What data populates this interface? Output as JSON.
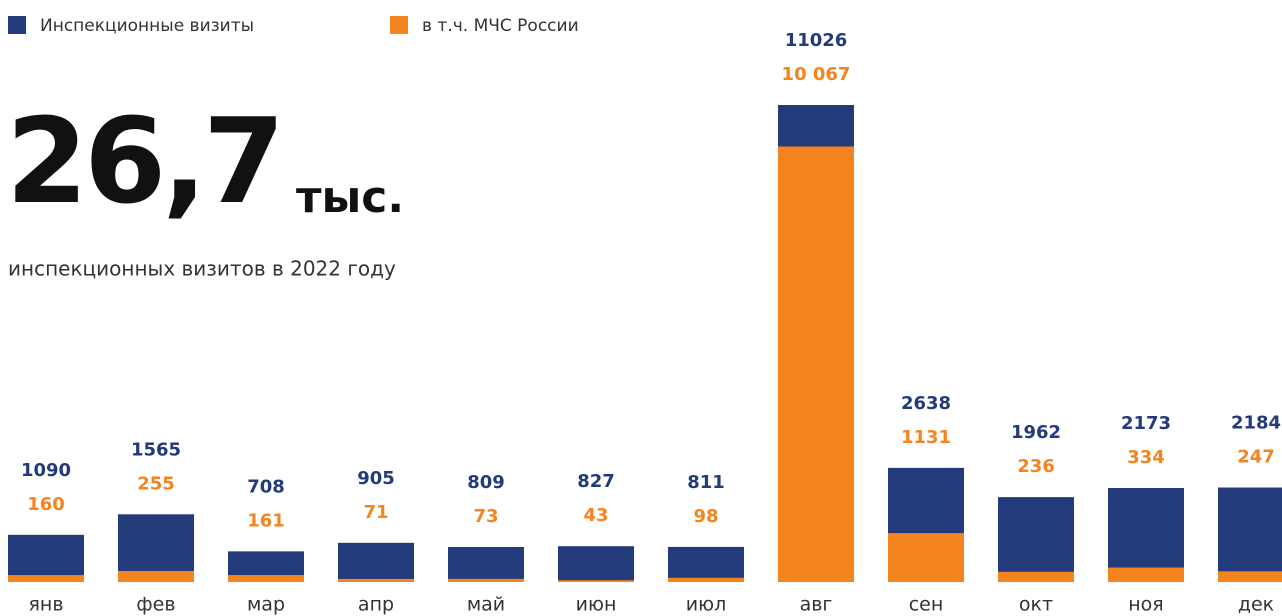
{
  "chart_data": {
    "type": "bar",
    "headline": "26,7",
    "headline_unit": "тыс.",
    "subtitle": "инспекционных визитов в 2022 году",
    "categories": [
      "янв",
      "фев",
      "мар",
      "апр",
      "май",
      "июн",
      "июл",
      "авг",
      "сен",
      "окт",
      "ноя",
      "дек"
    ],
    "series": [
      {
        "name": "Инспекционные визиты",
        "color": "#233a7b",
        "values": [
          1090,
          1565,
          708,
          905,
          809,
          827,
          811,
          11026,
          2638,
          1962,
          2173,
          2184
        ]
      },
      {
        "name": "в т.ч. МЧС России",
        "color": "#f5841f",
        "values": [
          160,
          255,
          161,
          71,
          73,
          43,
          98,
          10067,
          1131,
          236,
          334,
          247
        ],
        "value_labels": [
          "160",
          "255",
          "161",
          "71",
          "73",
          "43",
          "98",
          "10 067",
          "1131",
          "236",
          "334",
          "247"
        ]
      }
    ]
  }
}
